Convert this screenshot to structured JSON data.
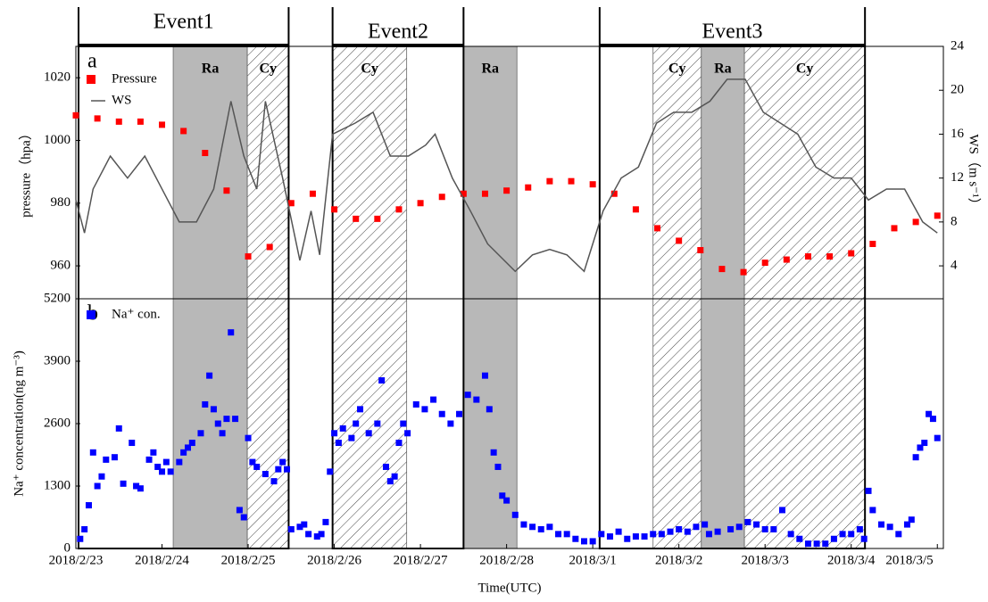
{
  "chart_data": [
    {
      "type": "line",
      "panel_label": "a",
      "ylabel": "pressure（hpa）",
      "y2label": "WS（m s⁻¹）",
      "xlim": [
        0,
        10.07
      ],
      "ylim": [
        949.5,
        1030
      ],
      "yticks": [
        960,
        980,
        1000,
        1020
      ],
      "y2lim": [
        1,
        24
      ],
      "y2ticks": [
        4,
        8,
        12,
        16,
        20,
        24
      ],
      "events": [
        {
          "label": "Event1",
          "start": 0,
          "end": 2.47
        },
        {
          "label": "Event2",
          "start": 2.98,
          "end": 4.5
        },
        {
          "label": "Event3",
          "start": 6.08,
          "end": 9.16
        }
      ],
      "regions": [
        {
          "label": "Ra",
          "start": 1.13,
          "end": 1.99,
          "style": "shade"
        },
        {
          "label": "Cy",
          "start": 1.99,
          "end": 2.47,
          "style": "hatch"
        },
        {
          "label": "Cy",
          "start": 2.98,
          "end": 3.84,
          "style": "hatch"
        },
        {
          "label": "Ra",
          "start": 4.5,
          "end": 5.12,
          "style": "shade"
        },
        {
          "label": "Cy",
          "start": 6.7,
          "end": 7.26,
          "style": "hatch"
        },
        {
          "label": "Ra",
          "start": 7.26,
          "end": 7.76,
          "style": "shade"
        },
        {
          "label": "Cy",
          "start": 7.76,
          "end": 9.16,
          "style": "hatch"
        }
      ],
      "series": [
        {
          "name": "Pressure",
          "color": "#ff0000",
          "style": "markers",
          "x": [
            0,
            0.25,
            0.5,
            0.75,
            1,
            1.25,
            1.5,
            1.75,
            2,
            2.25,
            2.5,
            2.75,
            3,
            3.25,
            3.5,
            3.75,
            4,
            4.25,
            4.5,
            4.75,
            5,
            5.25,
            5.5,
            5.75,
            6,
            6.25,
            6.5,
            6.75,
            7,
            7.25,
            7.5,
            7.75,
            8,
            8.25,
            8.5,
            8.75,
            9,
            9.25,
            9.5,
            9.75,
            10
          ],
          "values": [
            1008,
            1007,
            1006,
            1006,
            1005,
            1003,
            996,
            984,
            963,
            966,
            980,
            983,
            978,
            975,
            975,
            978,
            980,
            982,
            983,
            983,
            984,
            985,
            987,
            987,
            986,
            983,
            978,
            972,
            968,
            965,
            959,
            958,
            961,
            962,
            963,
            963,
            964,
            967,
            972,
            974,
            976
          ]
        },
        {
          "name": "WS",
          "color": "#555555",
          "style": "line",
          "axis": "y2",
          "x": [
            0,
            0.1,
            0.2,
            0.4,
            0.6,
            0.8,
            1.0,
            1.2,
            1.4,
            1.6,
            1.8,
            1.95,
            2.1,
            2.2,
            2.4,
            2.6,
            2.73,
            2.83,
            2.98,
            3.24,
            3.45,
            3.65,
            3.86,
            4.06,
            4.17,
            4.37,
            4.58,
            4.78,
            5.1,
            5.3,
            5.5,
            5.7,
            5.9,
            6.12,
            6.33,
            6.53,
            6.74,
            6.94,
            7.15,
            7.36,
            7.56,
            7.77,
            7.98,
            8.18,
            8.38,
            8.59,
            8.8,
            9.0,
            9.2,
            9.41,
            9.62,
            9.83,
            10
          ],
          "values": [
            10,
            7,
            11,
            14,
            12,
            14,
            11,
            8,
            8,
            11,
            19,
            14,
            11,
            19,
            12,
            4.5,
            9,
            5,
            16,
            17,
            18,
            14,
            14,
            15,
            16,
            12,
            9,
            6,
            3.5,
            5,
            5.5,
            5,
            3.5,
            9,
            12,
            13,
            17,
            18,
            18,
            19,
            21,
            21,
            18,
            17,
            16,
            13,
            12,
            12,
            10,
            11,
            11,
            8,
            7
          ]
        }
      ]
    },
    {
      "type": "scatter",
      "panel_label": "b",
      "ylabel": "Na⁺ concentration(ng m⁻³)",
      "xlabel": "Time(UTC)",
      "xlim": [
        0,
        10.07
      ],
      "ylim": [
        0,
        5200
      ],
      "yticks": [
        0,
        1300,
        2600,
        3900,
        5200
      ],
      "xticks": [
        {
          "value": 0,
          "label": "2018/2/23"
        },
        {
          "value": 1,
          "label": "2018/2/24"
        },
        {
          "value": 2,
          "label": "2018/2/25"
        },
        {
          "value": 3,
          "label": "2018/2/26"
        },
        {
          "value": 4,
          "label": "2018/2/27"
        },
        {
          "value": 5,
          "label": "2018/2/28"
        },
        {
          "value": 6,
          "label": "2018/3/1"
        },
        {
          "value": 7,
          "label": "2018/3/2"
        },
        {
          "value": 8,
          "label": "2018/3/3"
        },
        {
          "value": 9,
          "label": "2018/3/4"
        },
        {
          "value": 10,
          "label": "2018/3/5"
        }
      ],
      "series": [
        {
          "name": "Na⁺ con.",
          "color": "#0000ff",
          "x": [
            0.05,
            0.1,
            0.15,
            0.2,
            0.25,
            0.3,
            0.35,
            0.45,
            0.5,
            0.55,
            0.65,
            0.7,
            0.75,
            0.85,
            0.9,
            0.95,
            1.0,
            1.05,
            1.1,
            1.2,
            1.25,
            1.3,
            1.35,
            1.45,
            1.5,
            1.55,
            1.6,
            1.65,
            1.7,
            1.75,
            1.8,
            1.85,
            1.9,
            1.95,
            2.0,
            2.05,
            2.1,
            2.2,
            2.3,
            2.35,
            2.4,
            2.45,
            2.5,
            2.6,
            2.65,
            2.7,
            2.8,
            2.85,
            2.9,
            2.95,
            3.0,
            3.05,
            3.1,
            3.2,
            3.25,
            3.3,
            3.4,
            3.5,
            3.55,
            3.6,
            3.65,
            3.7,
            3.75,
            3.8,
            3.85,
            3.95,
            4.05,
            4.15,
            4.25,
            4.35,
            4.45,
            4.55,
            4.65,
            4.75,
            4.8,
            4.85,
            4.9,
            4.95,
            5.0,
            5.1,
            5.2,
            5.3,
            5.4,
            5.5,
            5.6,
            5.7,
            5.8,
            5.9,
            6.0,
            6.1,
            6.2,
            6.3,
            6.4,
            6.5,
            6.6,
            6.7,
            6.8,
            6.9,
            7.0,
            7.1,
            7.2,
            7.3,
            7.35,
            7.45,
            7.6,
            7.7,
            7.8,
            7.9,
            8.0,
            8.1,
            8.2,
            8.3,
            8.4,
            8.5,
            8.6,
            8.7,
            8.8,
            8.9,
            9.0,
            9.1,
            9.15,
            9.2,
            9.25,
            9.35,
            9.45,
            9.55,
            9.65,
            9.7,
            9.75,
            9.8,
            9.85,
            9.9,
            9.95,
            10.0
          ],
          "values": [
            200,
            400,
            900,
            2000,
            1300,
            1500,
            1850,
            1900,
            2500,
            1350,
            2200,
            1300,
            1250,
            1850,
            2000,
            1700,
            1600,
            1800,
            1600,
            1800,
            2000,
            2100,
            2200,
            2400,
            3000,
            3600,
            2900,
            2600,
            2400,
            2700,
            4500,
            2700,
            800,
            650,
            2300,
            1800,
            1700,
            1550,
            1400,
            1650,
            1800,
            1650,
            400,
            450,
            500,
            300,
            250,
            300,
            550,
            1600,
            2400,
            2200,
            2500,
            2300,
            2600,
            2900,
            2400,
            2600,
            3500,
            1700,
            1400,
            1500,
            2200,
            2600,
            2400,
            3000,
            2900,
            3100,
            2800,
            2600,
            2800,
            3200,
            3100,
            3600,
            2900,
            2000,
            1700,
            1100,
            1000,
            700,
            500,
            450,
            400,
            450,
            300,
            300,
            200,
            150,
            150,
            300,
            250,
            350,
            200,
            250,
            250,
            300,
            300,
            350,
            400,
            350,
            450,
            500,
            300,
            350,
            400,
            450,
            550,
            500,
            400,
            400,
            800,
            300,
            200,
            100,
            100,
            100,
            200,
            300,
            300,
            400,
            200,
            1200,
            800,
            500,
            450,
            300,
            500,
            600,
            1900,
            2100,
            2200,
            2800,
            2700,
            2300
          ]
        }
      ]
    }
  ]
}
